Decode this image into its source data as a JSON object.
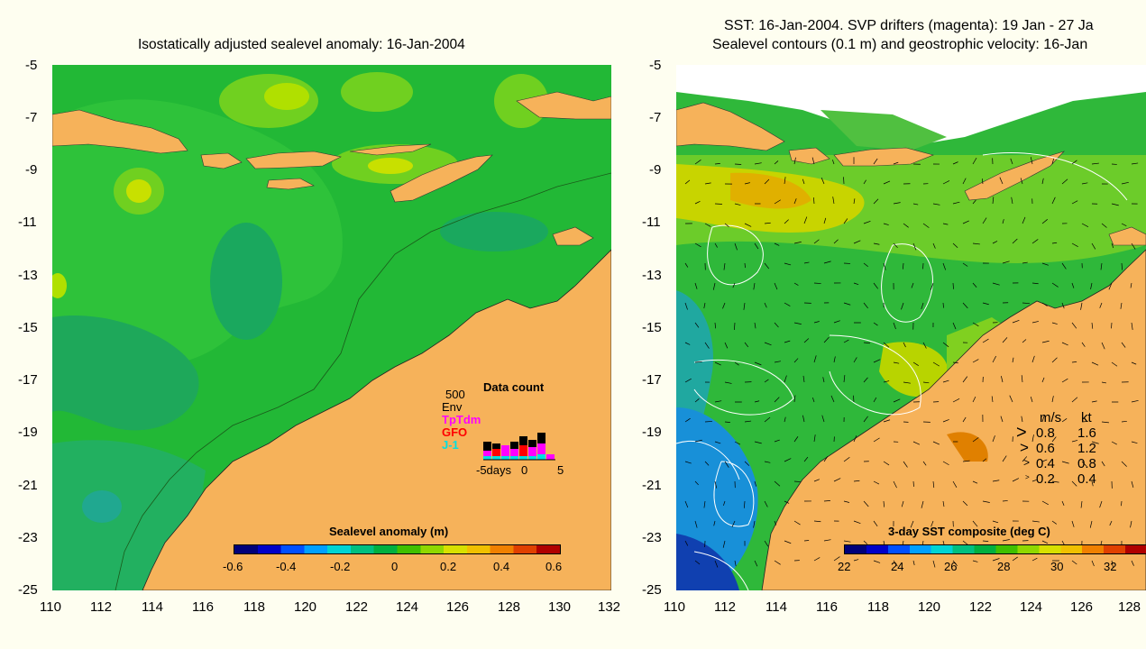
{
  "left_panel": {
    "title": "Isostatically adjusted sealevel anomaly: 16-Jan-2004",
    "y_ticks": [
      "-5",
      "-7",
      "-9",
      "-11",
      "-13",
      "-15",
      "-17",
      "-19",
      "-21",
      "-23",
      "-25"
    ],
    "x_ticks": [
      "110",
      "112",
      "114",
      "116",
      "118",
      "120",
      "122",
      "124",
      "126",
      "128",
      "130",
      "132"
    ],
    "colorbar": {
      "label": "Sealevel anomaly (m)",
      "ticks": [
        "-0.6",
        "-0.4",
        "-0.2",
        "0",
        "0.2",
        "0.4",
        "0.6"
      ],
      "colors": [
        "#00007a",
        "#0000c8",
        "#0050ff",
        "#00a0ff",
        "#00d4d4",
        "#00c080",
        "#00b040",
        "#40c000",
        "#90d800",
        "#d8e000",
        "#f0c000",
        "#f08000",
        "#e04000",
        "#b00000"
      ]
    },
    "data_count": {
      "title": "Data count",
      "scale": "500",
      "legend": [
        {
          "name": "Env",
          "color": "#000000"
        },
        {
          "name": "TpTdm",
          "color": "#ff00ff"
        },
        {
          "name": "GFO",
          "color": "#ff0000"
        },
        {
          "name": "J-1",
          "color": "#00e0e0"
        }
      ],
      "x_ticks": [
        "-5days",
        "0",
        "5"
      ]
    }
  },
  "right_panel": {
    "title_line1": "SST: 16-Jan-2004. SVP drifters (magenta): 19 Jan - 27 Ja",
    "title_line2": "Sealevel contours (0.1 m) and geostrophic velocity: 16-Jan",
    "y_ticks": [
      "-5",
      "-7",
      "-9",
      "-11",
      "-13",
      "-15",
      "-17",
      "-19",
      "-21",
      "-23",
      "-25"
    ],
    "x_ticks": [
      "110",
      "112",
      "114",
      "116",
      "118",
      "120",
      "122",
      "124",
      "126",
      "128"
    ],
    "colorbar": {
      "label": "3-day SST composite (deg C)",
      "ticks": [
        "22",
        "24",
        "26",
        "28",
        "30",
        "32"
      ],
      "colors": [
        "#00007a",
        "#0000c8",
        "#0050ff",
        "#00a0ff",
        "#00d4d4",
        "#00c080",
        "#00b040",
        "#40c000",
        "#90d800",
        "#d8e000",
        "#f0c000",
        "#f08000",
        "#e04000",
        "#b00000"
      ]
    },
    "velocity_key": {
      "header_ms": "m/s",
      "header_kt": "kt",
      "rows": [
        {
          "ms": "0.8",
          "kt": "1.6"
        },
        {
          "ms": "0.6",
          "kt": "1.2"
        },
        {
          "ms": "0.4",
          "kt": "0.8"
        },
        {
          "ms": "0.2",
          "kt": "0.4"
        }
      ]
    }
  }
}
